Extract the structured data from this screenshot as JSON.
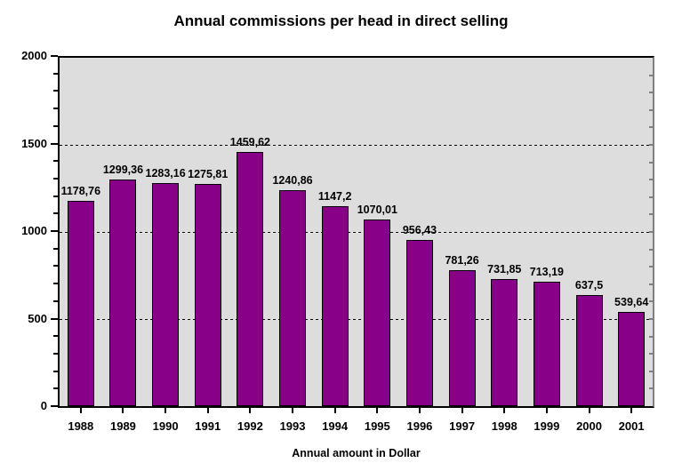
{
  "chart_data": {
    "type": "bar",
    "title": "Annual commissions per head in direct selling",
    "xlabel": "Annual amount in Dollar",
    "ylabel": "",
    "categories": [
      "1988",
      "1989",
      "1990",
      "1991",
      "1992",
      "1993",
      "1994",
      "1995",
      "1996",
      "1997",
      "1998",
      "1999",
      "2000",
      "2001"
    ],
    "values": [
      1178.76,
      1299.36,
      1283.16,
      1275.81,
      1459.62,
      1240.86,
      1147.2,
      1070.01,
      956.43,
      781.26,
      731.85,
      713.19,
      637.5,
      539.64
    ],
    "value_labels": [
      "1178,76",
      "1299,36",
      "1283,16",
      "1275,81",
      "1459,62",
      "1240,86",
      "1147,2",
      "1070,01",
      "956,43",
      "781,26",
      "731,85",
      "713,19",
      "637,5",
      "539,64"
    ],
    "ylim": [
      0,
      2000
    ],
    "yticks": [
      0,
      500,
      1000,
      1500,
      2000
    ],
    "ytick_major": 500,
    "ytick_minor": 100,
    "grid": "horizontal dashed at major ticks",
    "legend": "none",
    "colors": {
      "bar_fill": "#870087",
      "bar_border": "#000000",
      "plot_bg": "#DDDDDD",
      "page_bg": "#FFFFFF",
      "grid_line": "#000000",
      "axis_line": "#000000",
      "right_border": "#808080",
      "text": "#000000"
    }
  }
}
